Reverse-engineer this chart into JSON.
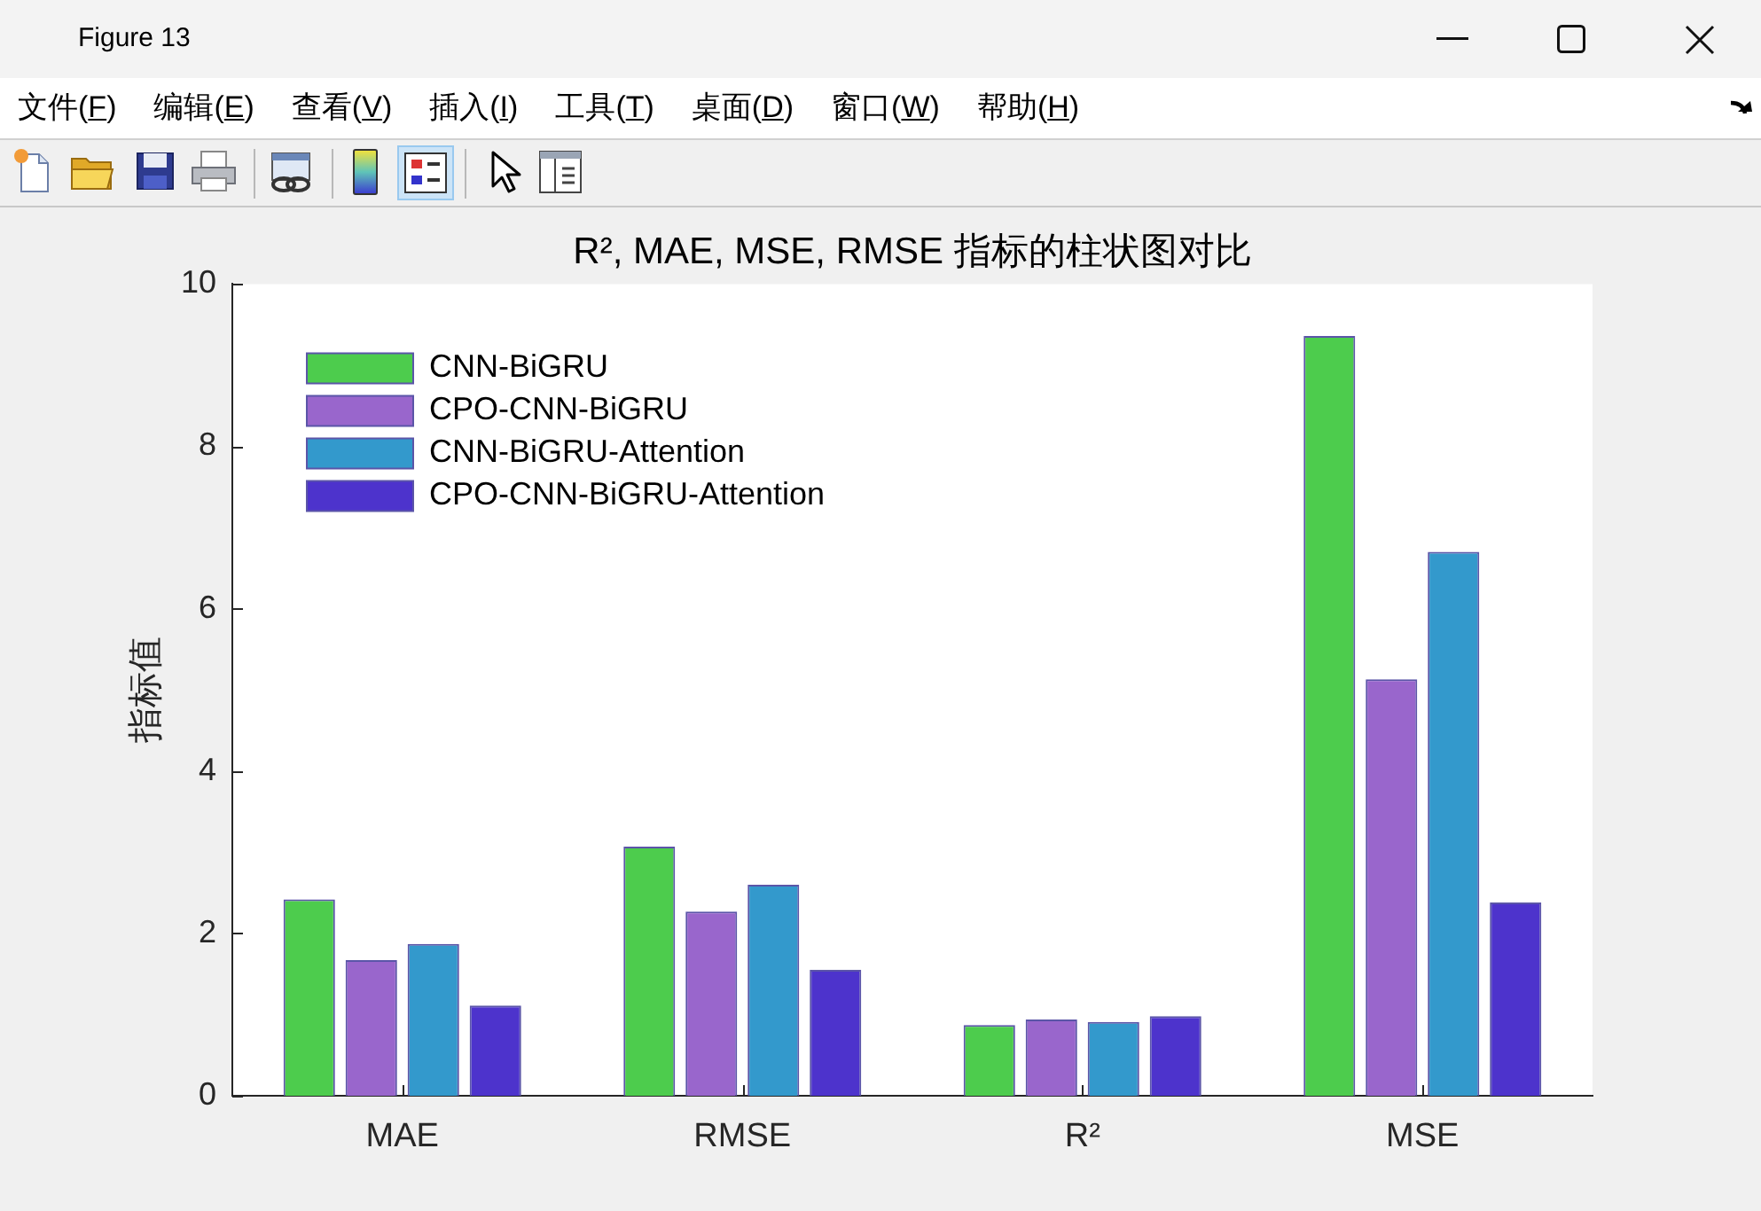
{
  "chart_data": {
    "type": "bar",
    "title": "R², MAE, MSE, RMSE 指标的柱状图对比",
    "ylabel": "指标值",
    "categories": [
      "MAE",
      "RMSE",
      "R²",
      "MSE"
    ],
    "series": [
      {
        "name": "CNN-BiGRU",
        "color": "#4dcc4d",
        "values": [
          2.42,
          3.07,
          0.87,
          9.36
        ]
      },
      {
        "name": "CPO-CNN-BiGRU",
        "color": "#9966cc",
        "values": [
          1.67,
          2.27,
          0.94,
          5.13
        ]
      },
      {
        "name": "CNN-BiGRU-Attention",
        "color": "#3399cc",
        "values": [
          1.87,
          2.6,
          0.91,
          6.7
        ]
      },
      {
        "name": "CPO-CNN-BiGRU-Attention",
        "color": "#4d33cc",
        "values": [
          1.11,
          1.55,
          0.98,
          2.38
        ]
      }
    ],
    "ylim": [
      0,
      10
    ],
    "yticks": [
      0,
      2,
      4,
      6,
      8,
      10
    ],
    "grid": false,
    "legend": "top left",
    "annotations": [
      "Figure 13",
      "文件(F)",
      "编辑(E)",
      "查看(V)",
      "插入(I)",
      "工具(T)",
      "桌面(D)",
      "窗口(W)",
      "帮助(H)"
    ]
  }
}
